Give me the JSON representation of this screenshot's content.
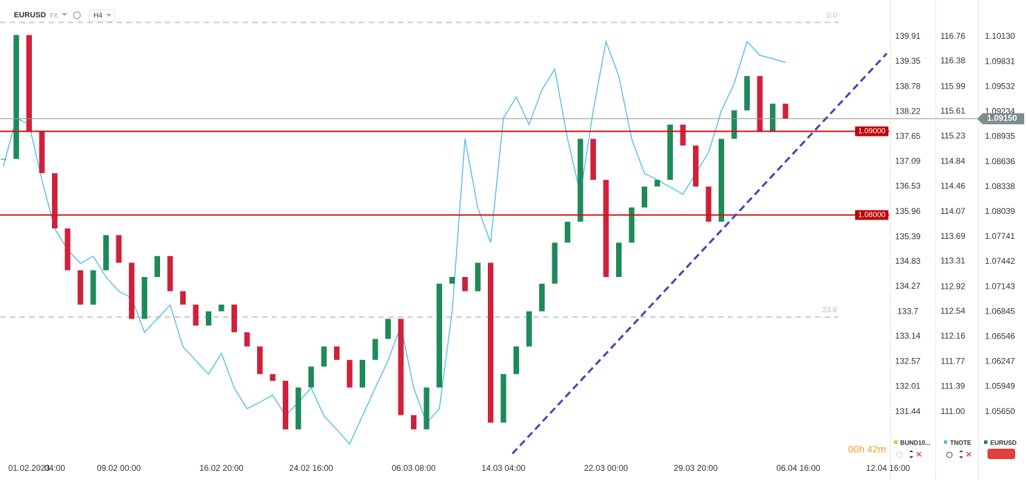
{
  "header": {
    "symbol": "EURUSD",
    "market": "FX",
    "interval": "H4"
  },
  "timer": "00h 42m",
  "chart_data": {
    "type": "candlestick",
    "categories": [
      null,
      null,
      "01.02.2023",
      null,
      "04:00",
      null,
      null,
      null,
      null,
      "09.02 00:00",
      null,
      null,
      null,
      null,
      null,
      null,
      null,
      "16.02 20:00",
      null,
      null,
      null,
      null,
      null,
      null,
      "24.02 16:00",
      null,
      null,
      null,
      null,
      null,
      null,
      null,
      "06.03 08:00",
      null,
      null,
      null,
      null,
      null,
      null,
      "14.03 04:00",
      null,
      null,
      null,
      null,
      null,
      null,
      null,
      "22.03 00:00",
      null,
      null,
      null,
      null,
      null,
      null,
      "29.03 20:00",
      null,
      null,
      null,
      null,
      null,
      null,
      null,
      "06.04 16:00",
      null,
      null,
      null,
      null,
      null,
      null,
      "12.04 16:00"
    ],
    "series": [
      {
        "name": "BUND10...",
        "color": "#f0c020",
        "axis": "y3"
      },
      {
        "name": "TNOTE",
        "color": "#5bc0eb",
        "axis": "y2",
        "values": [
          114.77,
          115.51,
          115.41,
          114.56,
          113.81,
          113.49,
          113.28,
          113.39,
          113.07,
          112.85,
          112.75,
          112.22,
          112.43,
          112.64,
          112.0,
          111.79,
          111.58,
          111.9,
          111.37,
          111.05,
          111.15,
          111.26,
          110.94,
          111.15,
          111.37,
          110.94,
          110.73,
          110.51,
          110.94,
          111.37,
          111.79,
          112.32,
          111.37,
          110.83,
          111.05,
          112.54,
          115.19,
          114.13,
          113.6,
          115.51,
          115.83,
          115.41,
          115.94,
          116.26,
          115.19,
          114.34,
          115.62,
          116.68,
          116.15,
          115.19,
          114.66,
          114.56,
          114.45,
          114.34,
          114.66,
          114.98,
          115.62,
          116.04,
          116.68,
          116.47,
          116.42,
          116.36,
          null,
          null,
          null,
          null,
          null,
          null,
          null,
          null
        ]
      },
      {
        "name": "EURUSD",
        "color": "#1e8a5a",
        "down_color": "#d0213a",
        "values": [
          1.0867,
          1.1015,
          1.09,
          1.085,
          1.0784,
          1.0734,
          1.0693,
          1.0734,
          1.0776,
          1.0743,
          1.0676,
          1.0726,
          1.0751,
          1.0709,
          1.0693,
          1.0668,
          1.0685,
          1.0693,
          1.066,
          1.0643,
          1.061,
          1.0602,
          1.0544,
          1.0594,
          1.0619,
          1.0643,
          1.0627,
          1.0594,
          1.0627,
          1.0652,
          1.0676,
          1.0561,
          1.0544,
          1.0594,
          1.0718,
          1.0726,
          1.0709,
          1.0743,
          1.0552,
          1.061,
          1.0643,
          1.0685,
          1.0718,
          1.0767,
          1.0792,
          1.0891,
          1.0842,
          1.0726,
          1.0767,
          1.0809,
          1.0834,
          1.0842,
          1.0908,
          1.0883,
          1.0834,
          1.0792,
          1.0891,
          1.0925,
          1.0966,
          1.09,
          1.0933,
          1.0915,
          null,
          null,
          null,
          null,
          null,
          null,
          null,
          null
        ]
      }
    ],
    "ylim": [
      1.0511,
      1.1032
    ],
    "yticks": [
      {
        "value": 1.1013,
        "label": "1.10130"
      },
      1.09831,
      1.09532,
      1.09234,
      1.08935,
      1.08636,
      1.08338,
      1.08039,
      1.07741,
      1.07442,
      1.07143,
      1.06845,
      1.06546,
      1.06247,
      1.05949,
      {
        "value": 1.0565,
        "label": "1.05650"
      }
    ],
    "y2lim": [
      110.31,
      117.0
    ],
    "y2ticks": [
      116.76,
      116.38,
      115.99,
      115.61,
      115.23,
      114.84,
      114.46,
      114.07,
      113.69,
      113.31,
      112.92,
      112.54,
      112.16,
      111.77,
      111.39,
      {
        "value": 111.0,
        "label": "111.00"
      }
    ],
    "y3lim": [
      130.42,
      140.27
    ],
    "y3ticks": [
      139.91,
      139.35,
      138.78,
      138.22,
      137.65,
      137.09,
      136.53,
      135.96,
      135.39,
      134.83,
      134.27,
      133.7,
      133.14,
      132.57,
      132.01,
      131.44
    ],
    "hlines": [
      {
        "value": 1.09,
        "label": "1.09000"
      },
      {
        "value": 1.08,
        "label": "1.08000"
      }
    ],
    "fib_levels": [
      {
        "value": 1.103,
        "label": "0.0"
      },
      {
        "value": 1.0678,
        "label": "23.6"
      }
    ],
    "last_price": {
      "value": 1.0915,
      "label": "1.09150"
    },
    "trendline": {
      "x": [
        39.7,
        68.9
      ],
      "y": [
        1.0515,
        1.0993
      ]
    }
  }
}
